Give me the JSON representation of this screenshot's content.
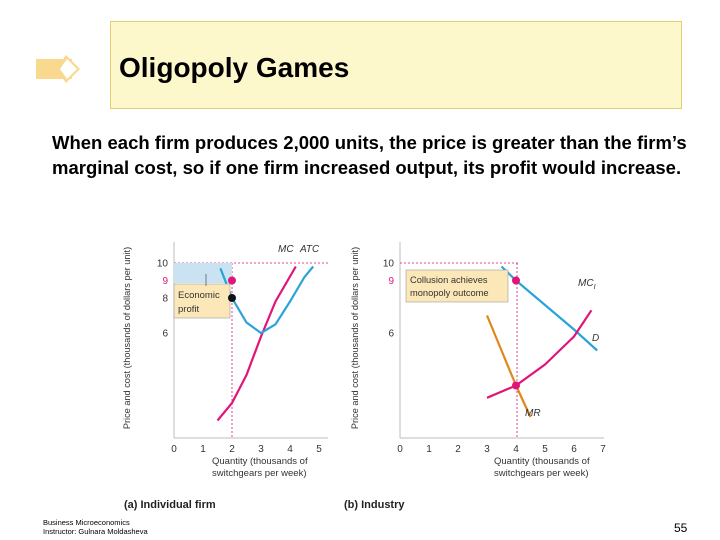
{
  "slide": {
    "title": "Oligopoly Games",
    "body": "When each firm produces 2,000 units, the price is greater than the firm’s marginal cost, so if one firm increased output, its profit would increase.",
    "footer_line1": "Business Microeconomics",
    "footer_line2": "Instructor: Gulnara Moldasheva",
    "page_number": "55"
  },
  "colors": {
    "title_bg": "#fdf8cc",
    "title_border": "#e6cf73",
    "mc_curve": "#e0157a",
    "atc_curve": "#2aa4d8",
    "mr_curve": "#e0871a",
    "profit_fill": "#c9e3f3",
    "label_box": "#fbe7b8"
  },
  "chart_data": [
    {
      "type": "line",
      "subtitle": "(a) Individual firm",
      "ylabel": "Price and cost (thousands of dollars per unit)",
      "xlabel_line1": "Quantity (thousands of",
      "xlabel_line2": "switchgears per week)",
      "xlim": [
        0,
        5
      ],
      "ylim": [
        0,
        10
      ],
      "x_ticks": [
        "0",
        "1",
        "2",
        "3",
        "4",
        "5"
      ],
      "y_ticks": [
        "10",
        "9",
        "8",
        "6"
      ],
      "series": [
        {
          "name": "MC",
          "x": [
            1.5,
            2.0,
            2.5,
            3.0,
            3.5,
            4.2
          ],
          "y": [
            1.0,
            2.0,
            3.6,
            5.8,
            7.8,
            9.8
          ]
        },
        {
          "name": "ATC",
          "x": [
            1.6,
            2.0,
            2.5,
            3.0,
            3.5,
            4.0,
            4.5,
            4.8
          ],
          "y": [
            9.7,
            8.0,
            6.6,
            6.0,
            6.5,
            7.8,
            9.2,
            9.8
          ]
        }
      ],
      "points": [
        {
          "x": 2,
          "y": 9
        },
        {
          "x": 2,
          "y": 8
        }
      ],
      "annotations": [
        "Economic",
        "profit"
      ]
    },
    {
      "type": "line",
      "subtitle": "(b) Industry",
      "ylabel": "Price and cost (thousands of dollars per unit)",
      "xlabel_line1": "Quantity (thousands of",
      "xlabel_line2": "switchgears per week)",
      "xlim": [
        0,
        7
      ],
      "ylim": [
        0,
        10
      ],
      "x_ticks": [
        "0",
        "1",
        "2",
        "3",
        "4",
        "5",
        "6",
        "7"
      ],
      "y_ticks": [
        "10",
        "9",
        "6"
      ],
      "series": [
        {
          "name": "D",
          "x": [
            3.5,
            4.0,
            5.0,
            6.0,
            6.8
          ],
          "y": [
            9.8,
            9.0,
            7.6,
            6.2,
            5.0
          ]
        },
        {
          "name": "MR",
          "x": [
            3.0,
            3.5,
            4.0,
            4.5
          ],
          "y": [
            7.0,
            5.0,
            3.0,
            1.2
          ]
        },
        {
          "name": "MC",
          "x": [
            3.0,
            4.0,
            5.0,
            5.5,
            6.0,
            6.6
          ],
          "y": [
            2.3,
            3.0,
            4.2,
            5.0,
            5.8,
            7.3
          ]
        }
      ],
      "mc_label_main": "MC",
      "mc_label_sub": "I",
      "points": [
        {
          "x": 4,
          "y": 9
        },
        {
          "x": 4,
          "y": 3
        }
      ],
      "annotations": [
        "Collusion achieves",
        "monopoly outcome"
      ]
    }
  ]
}
